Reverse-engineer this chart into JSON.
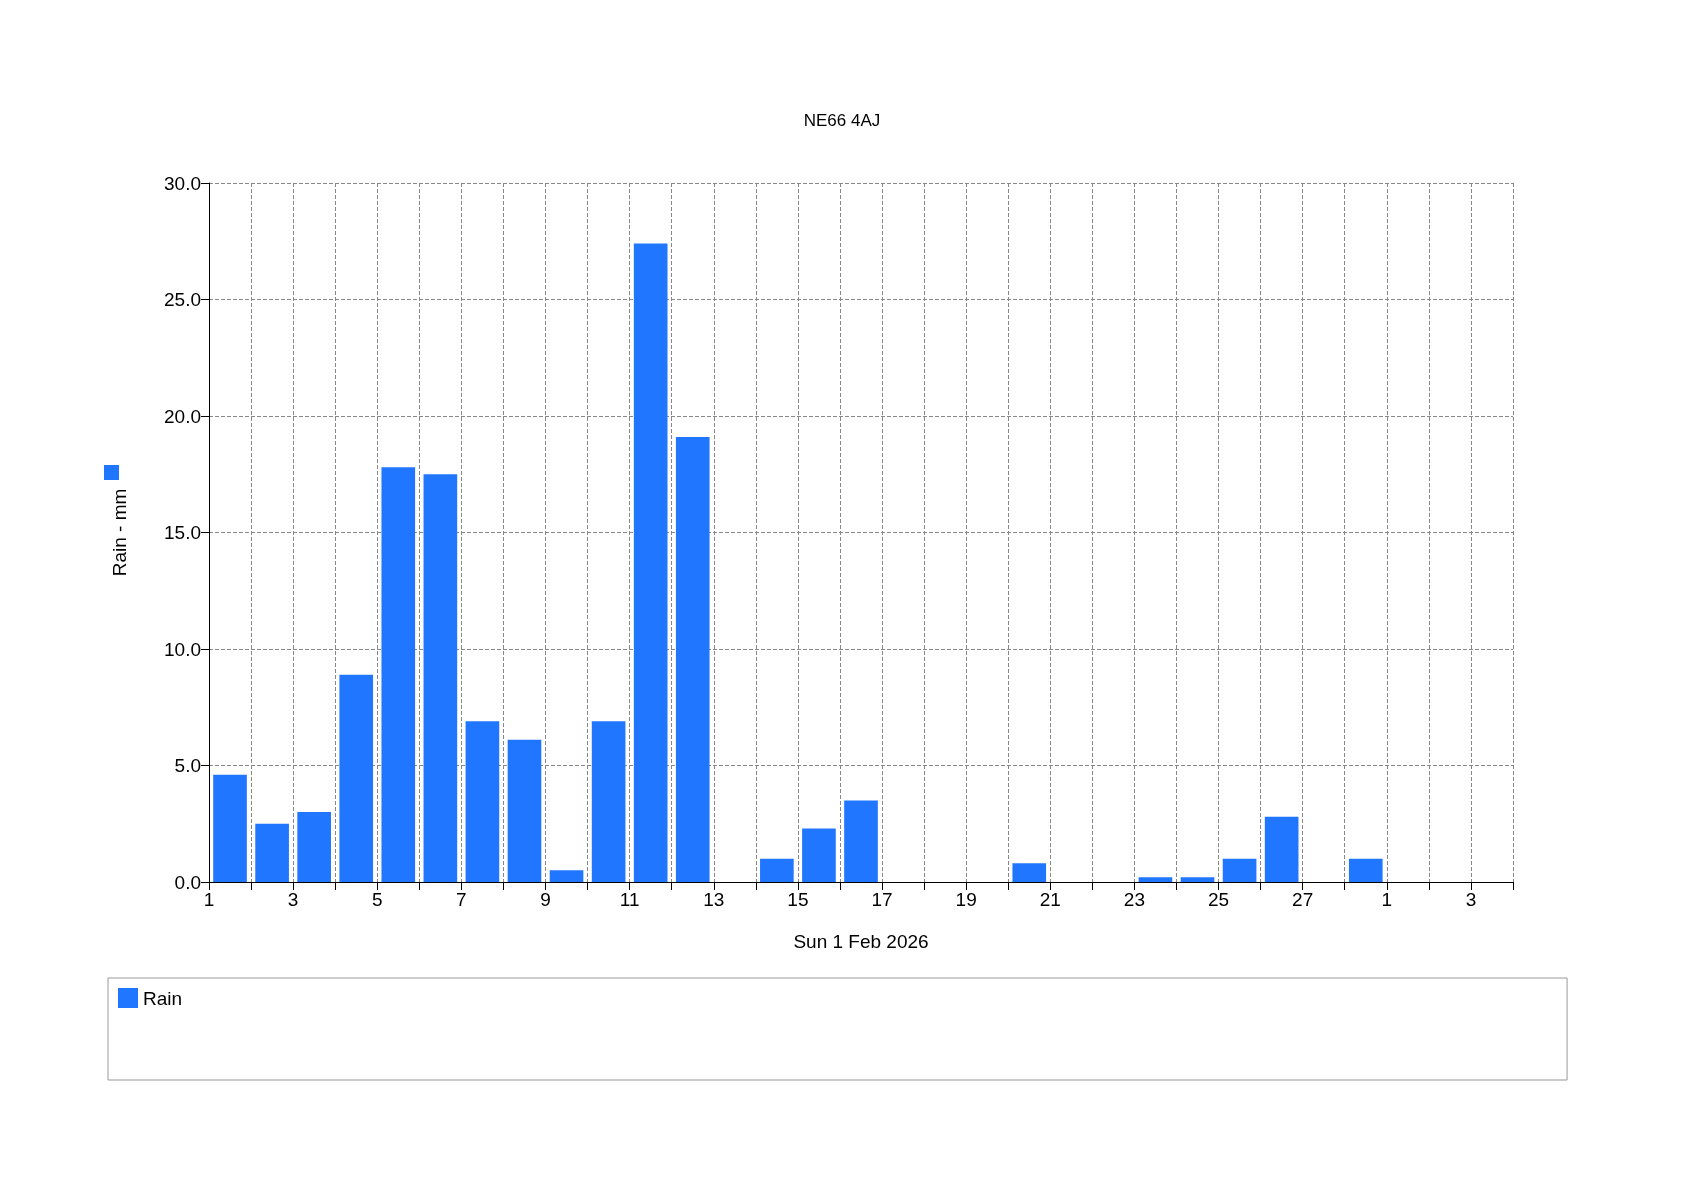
{
  "chart_data": {
    "type": "bar",
    "title": "NE66 4AJ",
    "xlabel": "Sun 1 Feb 2026",
    "ylabel": "Rain - mm",
    "x": [
      "2026-02-01T12:00",
      "2026-02-02T12:00",
      "2026-02-03T12:00",
      "2026-02-04T12:00",
      "2026-02-05T12:00",
      "2026-02-06T12:00",
      "2026-02-07T12:00",
      "2026-02-08T12:00",
      "2026-02-09T12:00",
      "2026-02-10T12:00",
      "2026-02-11T12:00",
      "2026-02-12T12:00",
      "2026-02-13T12:00",
      "2026-02-14T12:00",
      "2026-02-15T12:00",
      "2026-02-16T12:00",
      "2026-02-17T12:00",
      "2026-02-18T12:00",
      "2026-02-19T12:00",
      "2026-02-20T12:00",
      "2026-02-21T12:00",
      "2026-02-22T12:00",
      "2026-02-23T12:00",
      "2026-02-24T12:00",
      "2026-02-25T12:00",
      "2026-02-26T12:00",
      "2026-02-27T12:00",
      "2026-02-28T12:00",
      "2026-03-01T12:00",
      "2026-03-02T12:00",
      "2026-03-03T12:00"
    ],
    "series": [
      {
        "name": "Rain",
        "color": "#2176ff",
        "values": [
          4.6,
          2.5,
          3.0,
          8.9,
          17.8,
          17.5,
          6.9,
          6.1,
          0.5,
          6.9,
          27.4,
          19.1,
          0,
          1.0,
          2.3,
          3.5,
          0,
          0,
          0,
          0.8,
          0,
          0,
          0.2,
          0.2,
          1.0,
          2.8,
          0,
          1.0,
          0,
          0,
          0
        ]
      }
    ],
    "xlim": [
      "2026-02-01",
      "2026-03-04"
    ],
    "xticks": [
      {
        "value": "2026-02-01",
        "label": "1"
      },
      {
        "value": "2026-02-02",
        "label": null
      },
      {
        "value": "2026-02-03",
        "label": "3"
      },
      {
        "value": "2026-02-04",
        "label": null
      },
      {
        "value": "2026-02-05",
        "label": "5"
      },
      {
        "value": "2026-02-06",
        "label": null
      },
      {
        "value": "2026-02-07",
        "label": "7"
      },
      {
        "value": "2026-02-08",
        "label": null
      },
      {
        "value": "2026-02-09",
        "label": "9"
      },
      {
        "value": "2026-02-10",
        "label": null
      },
      {
        "value": "2026-02-11",
        "label": "11"
      },
      {
        "value": "2026-02-12",
        "label": null
      },
      {
        "value": "2026-02-13",
        "label": "13"
      },
      {
        "value": "2026-02-14",
        "label": null
      },
      {
        "value": "2026-02-15",
        "label": "15"
      },
      {
        "value": "2026-02-16",
        "label": null
      },
      {
        "value": "2026-02-17",
        "label": "17"
      },
      {
        "value": "2026-02-18",
        "label": null
      },
      {
        "value": "2026-02-19",
        "label": "19"
      },
      {
        "value": "2026-02-20",
        "label": null
      },
      {
        "value": "2026-02-21",
        "label": "21"
      },
      {
        "value": "2026-02-22",
        "label": null
      },
      {
        "value": "2026-02-23",
        "label": "23"
      },
      {
        "value": "2026-02-24",
        "label": null
      },
      {
        "value": "2026-02-25",
        "label": "25"
      },
      {
        "value": "2026-02-26",
        "label": null
      },
      {
        "value": "2026-02-27",
        "label": "27"
      },
      {
        "value": "2026-02-28",
        "label": null
      },
      {
        "value": "2026-03-01",
        "label": "1"
      },
      {
        "value": "2026-03-02",
        "label": null
      },
      {
        "value": "2026-03-03",
        "label": "3"
      },
      {
        "value": "2026-03-04",
        "label": null
      }
    ],
    "ylim": [
      0,
      30
    ],
    "yticks": [
      {
        "value": 0,
        "label": "0.0"
      },
      {
        "value": 5,
        "label": "5.0"
      },
      {
        "value": 10,
        "label": "10.0"
      },
      {
        "value": 15,
        "label": "15.0"
      },
      {
        "value": 20,
        "label": "20.0"
      },
      {
        "value": 25,
        "label": "25.0"
      },
      {
        "value": 30,
        "label": "30.0"
      }
    ],
    "grid": true,
    "legend": "bottom"
  }
}
